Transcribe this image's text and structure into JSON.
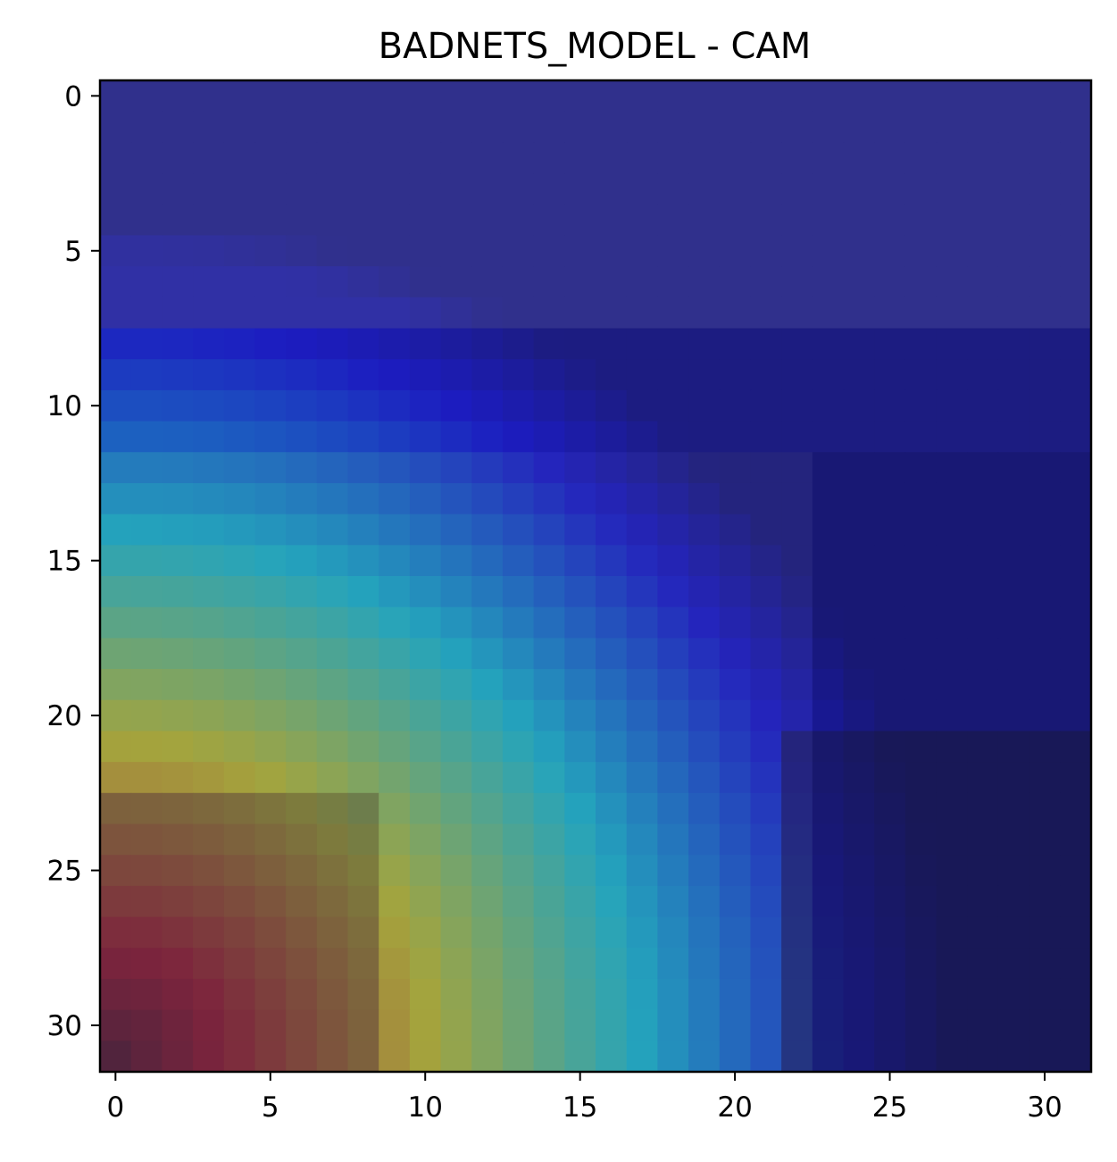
{
  "chart_data": {
    "type": "heatmap",
    "title": "BADNETS_MODEL - CAM",
    "xlabel": "",
    "ylabel": "",
    "grid_size": [
      32,
      32
    ],
    "xlim": [
      -0.5,
      31.5
    ],
    "ylim": [
      31.5,
      -0.5
    ],
    "y_axis_inverted": true,
    "grid": false,
    "colormap": "jet overlaid on image",
    "x_tick_labels": [
      "0",
      "5",
      "10",
      "15",
      "20",
      "25",
      "30"
    ],
    "y_tick_labels": [
      "0",
      "5",
      "10",
      "15",
      "20",
      "25",
      "30"
    ],
    "x_tick_values": [
      0,
      5,
      10,
      15,
      20,
      25,
      30
    ],
    "y_tick_values": [
      0,
      5,
      10,
      15,
      20,
      25,
      30
    ],
    "regions": [
      {
        "name": "high activation",
        "description": "bottom-left corner, dark red",
        "rows": [
          22,
          31
        ],
        "cols": [
          0,
          8
        ]
      },
      {
        "name": "gradient",
        "description": "diagonal band from red through yellow, green, cyan to blue",
        "rows": [
          12,
          31
        ],
        "cols": [
          0,
          21
        ]
      },
      {
        "name": "low activation",
        "description": "top rows and right side, blue/purple",
        "rows": [
          0,
          11
        ],
        "cols": [
          0,
          31
        ]
      }
    ]
  }
}
